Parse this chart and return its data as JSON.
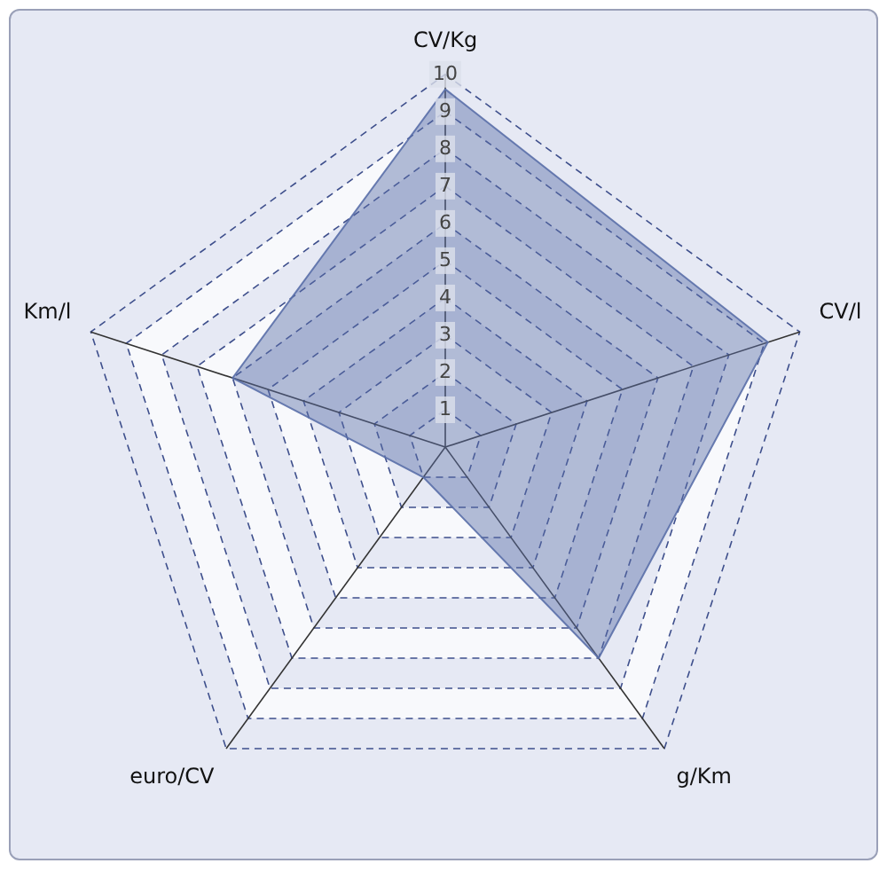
{
  "chart_data": {
    "type": "radar",
    "categories": [
      "CV/Kg",
      "CV/l",
      "g/Km",
      "euro/CV",
      "Km/l"
    ],
    "series": [
      {
        "color": "#5a6fa8",
        "values": [
          9.6,
          9.1,
          7,
          1,
          6
        ]
      }
    ],
    "ylim": [
      0,
      10
    ],
    "yticks": [
      1,
      2,
      3,
      4,
      5,
      6,
      7,
      8,
      9,
      10
    ],
    "grid": true,
    "legend": false,
    "line_style": "dashed",
    "marker": "none"
  }
}
